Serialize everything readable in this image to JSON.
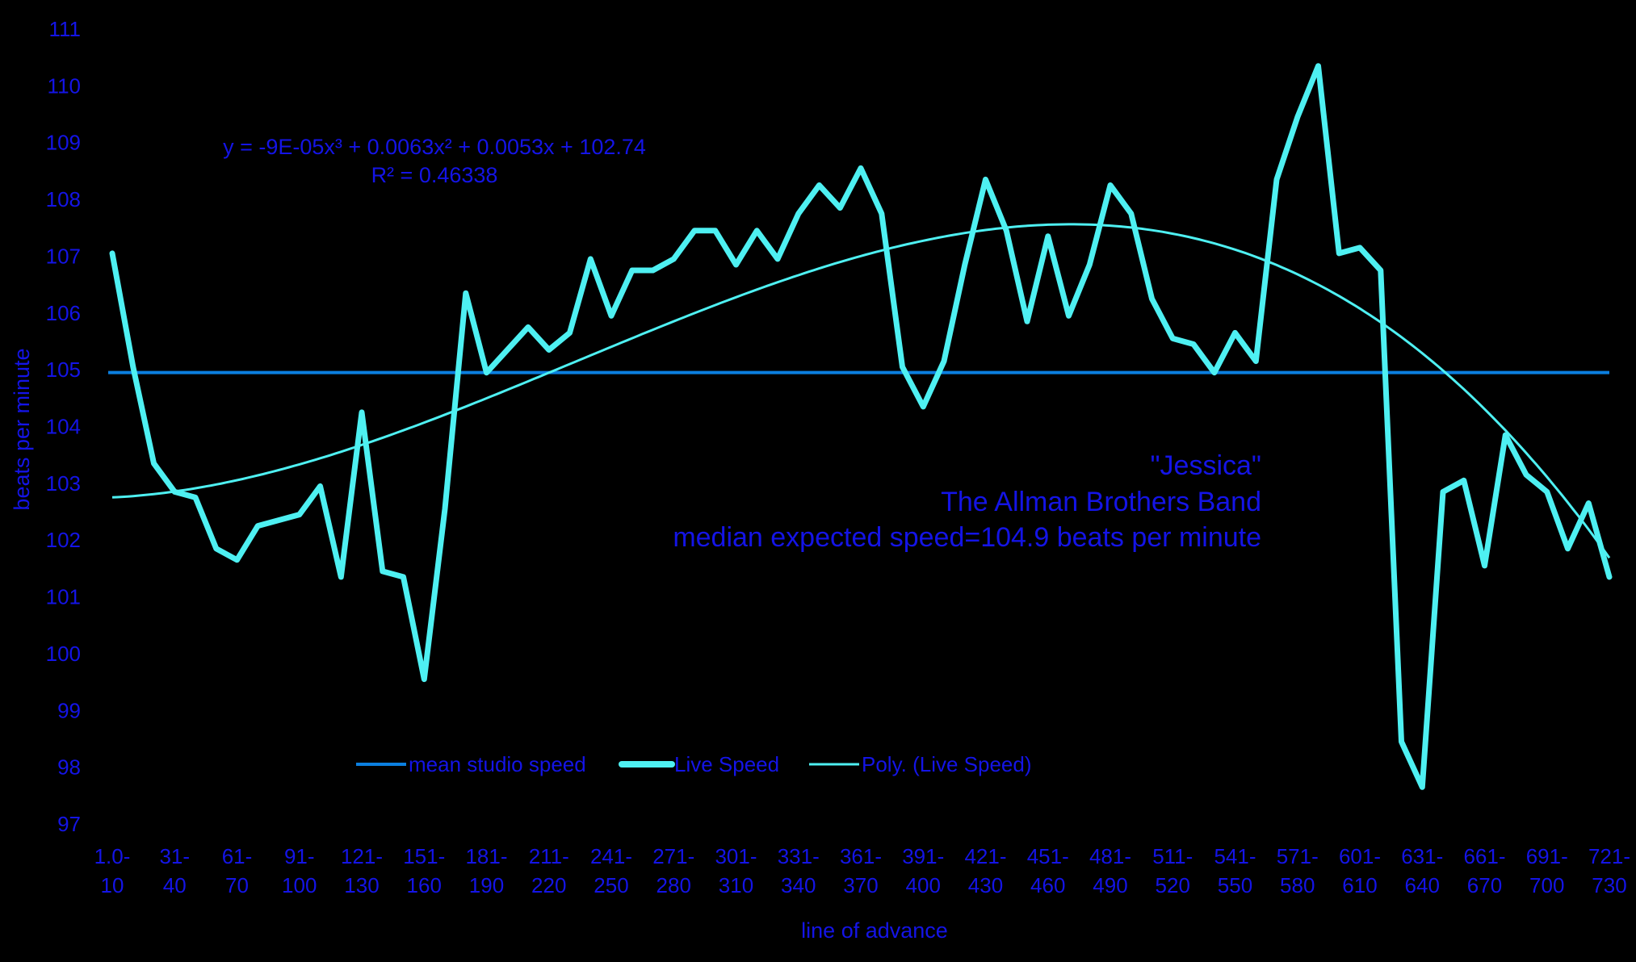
{
  "chart_data": {
    "type": "line",
    "title": "",
    "xlabel": "line of advance",
    "ylabel": "beats per minute",
    "ylim": [
      97,
      111
    ],
    "yticks": [
      "97",
      "98",
      "99",
      "100",
      "101",
      "102",
      "103",
      "104",
      "105",
      "106",
      "107",
      "108",
      "109",
      "110",
      "111"
    ],
    "x_tick_labels": [
      [
        "1.0-",
        "10"
      ],
      [
        "31-",
        "40"
      ],
      [
        "61-",
        "70"
      ],
      [
        "91-",
        "100"
      ],
      [
        "121-",
        "130"
      ],
      [
        "151-",
        "160"
      ],
      [
        "181-",
        "190"
      ],
      [
        "211-",
        "220"
      ],
      [
        "241-",
        "250"
      ],
      [
        "271-",
        "280"
      ],
      [
        "301-",
        "310"
      ],
      [
        "331-",
        "340"
      ],
      [
        "361-",
        "370"
      ],
      [
        "391-",
        "400"
      ],
      [
        "421-",
        "430"
      ],
      [
        "451-",
        "460"
      ],
      [
        "481-",
        "490"
      ],
      [
        "511-",
        "520"
      ],
      [
        "541-",
        "550"
      ],
      [
        "571-",
        "580"
      ],
      [
        "601-",
        "610"
      ],
      [
        "631-",
        "640"
      ],
      [
        "661-",
        "670"
      ],
      [
        "691-",
        "700"
      ],
      [
        "721-",
        "730"
      ]
    ],
    "n_points": 73,
    "series": [
      {
        "name": "mean studio speed",
        "color": "#0b7fe0",
        "values": [
          104.95
        ]
      },
      {
        "name": "Live Speed",
        "color": "#4ef0f2",
        "values": [
          107.05,
          105.05,
          103.35,
          102.85,
          102.75,
          101.85,
          101.65,
          102.25,
          102.35,
          102.45,
          102.95,
          101.35,
          104.25,
          101.45,
          101.35,
          99.55,
          102.55,
          106.35,
          104.95,
          105.35,
          105.75,
          105.35,
          105.65,
          106.95,
          105.95,
          106.75,
          106.75,
          106.95,
          107.45,
          107.45,
          106.85,
          107.45,
          106.95,
          107.75,
          108.25,
          107.85,
          108.55,
          107.75,
          105.05,
          104.35,
          105.15,
          106.85,
          108.35,
          107.45,
          105.85,
          107.35,
          105.95,
          106.85,
          108.25,
          107.75,
          106.25,
          105.55,
          105.45,
          104.95,
          105.65,
          105.15,
          108.35,
          109.45,
          110.35,
          107.05,
          107.15,
          106.75,
          98.45,
          97.65,
          102.85,
          103.05,
          101.55,
          103.85,
          103.15,
          102.85,
          101.85,
          102.65,
          101.35
        ]
      },
      {
        "name": "Poly.  (Live Speed)",
        "color": "#4ef0f2",
        "coefficients": [
          -9e-05,
          0.0063,
          0.0053,
          102.74
        ]
      }
    ],
    "trendline_equation": "y = -9E-05x³ + 0.0063x² + 0.0053x + 102.74",
    "trendline_r2": "R² = 0.46338",
    "annotation": [
      "\"Jessica\"",
      "The Allman Brothers Band",
      "median expected speed=104.9 beats per minute"
    ],
    "legend": [
      "mean studio speed",
      "Live Speed",
      "Poly.  (Live Speed)"
    ],
    "legend_position": "bottom-center",
    "grid": false
  },
  "colors": {
    "background": "#000000",
    "text": "#1414e6",
    "live": "#4ef0f2",
    "mean": "#0b7fe0"
  }
}
